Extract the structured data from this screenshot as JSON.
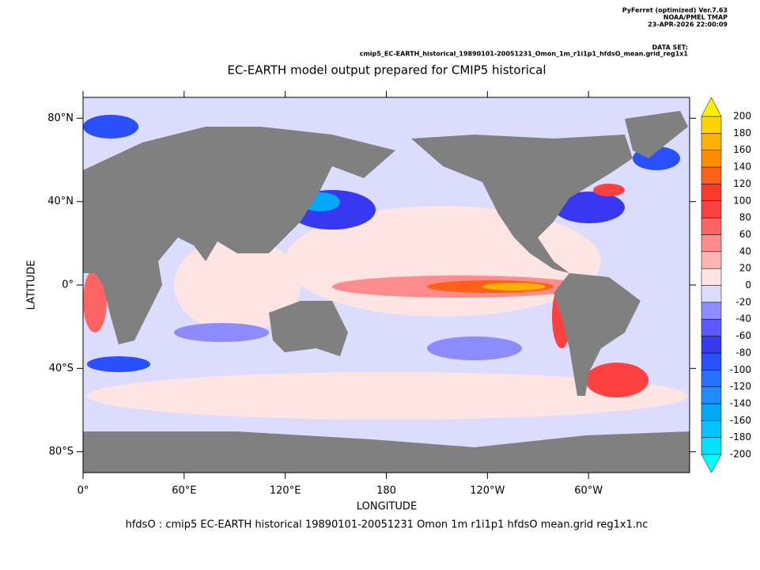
{
  "header": {
    "program": "PyFerret (optimized) Ver.7.63",
    "org": "NOAA/PMEL TMAP",
    "date": "23-APR-2026 22:00:09",
    "dataset_label": "DATA SET:",
    "dataset": "cmip5_EC-EARTH_historical_19890101-20051231_Omon_1m_r1i1p1_hfdsO_mean.grid_reg1x1"
  },
  "title": "EC-EARTH model output prepared for CMIP5 historical",
  "map": {
    "xlabel": "LONGITUDE",
    "ylabel": "LATITUDE",
    "xlim": [
      0,
      360
    ],
    "ylim": [
      -90,
      90
    ],
    "xticks": [
      {
        "value": 0,
        "label": "0°"
      },
      {
        "value": 60,
        "label": "60°E"
      },
      {
        "value": 120,
        "label": "120°E"
      },
      180,
      {
        "value": 240,
        "label": "120°W"
      },
      {
        "value": 300,
        "label": "60°W"
      }
    ],
    "yticks": [
      {
        "value": -80,
        "label": "80°S"
      },
      {
        "value": -40,
        "label": "40°S"
      },
      {
        "value": 0,
        "label": "0°"
      },
      {
        "value": 40,
        "label": "40°N"
      },
      {
        "value": 80,
        "label": "80°N"
      }
    ]
  },
  "colorbar": {
    "levels": [
      -200,
      -180,
      -160,
      -140,
      -120,
      -100,
      -80,
      -60,
      -40,
      -20,
      0,
      20,
      40,
      60,
      80,
      100,
      120,
      140,
      160,
      180,
      200
    ],
    "colors": [
      "#00ffff",
      "#00e0ff",
      "#00c4ff",
      "#00a8f8",
      "#1e8cff",
      "#2870ff",
      "#2850ff",
      "#3838f0",
      "#5a5aff",
      "#8c8cff",
      "#dcdcff",
      "#ffe4e4",
      "#ffb4b4",
      "#ff8c8c",
      "#ff6464",
      "#ff4040",
      "#ff3828",
      "#ff6018",
      "#ff8c00",
      "#ffb000",
      "#ffd400",
      "#ffee00"
    ]
  },
  "footer": "hfdsO : cmip5 EC-EARTH historical 19890101-20051231 Omon 1m r1i1p1 hfdsO mean.grid reg1x1.nc"
}
